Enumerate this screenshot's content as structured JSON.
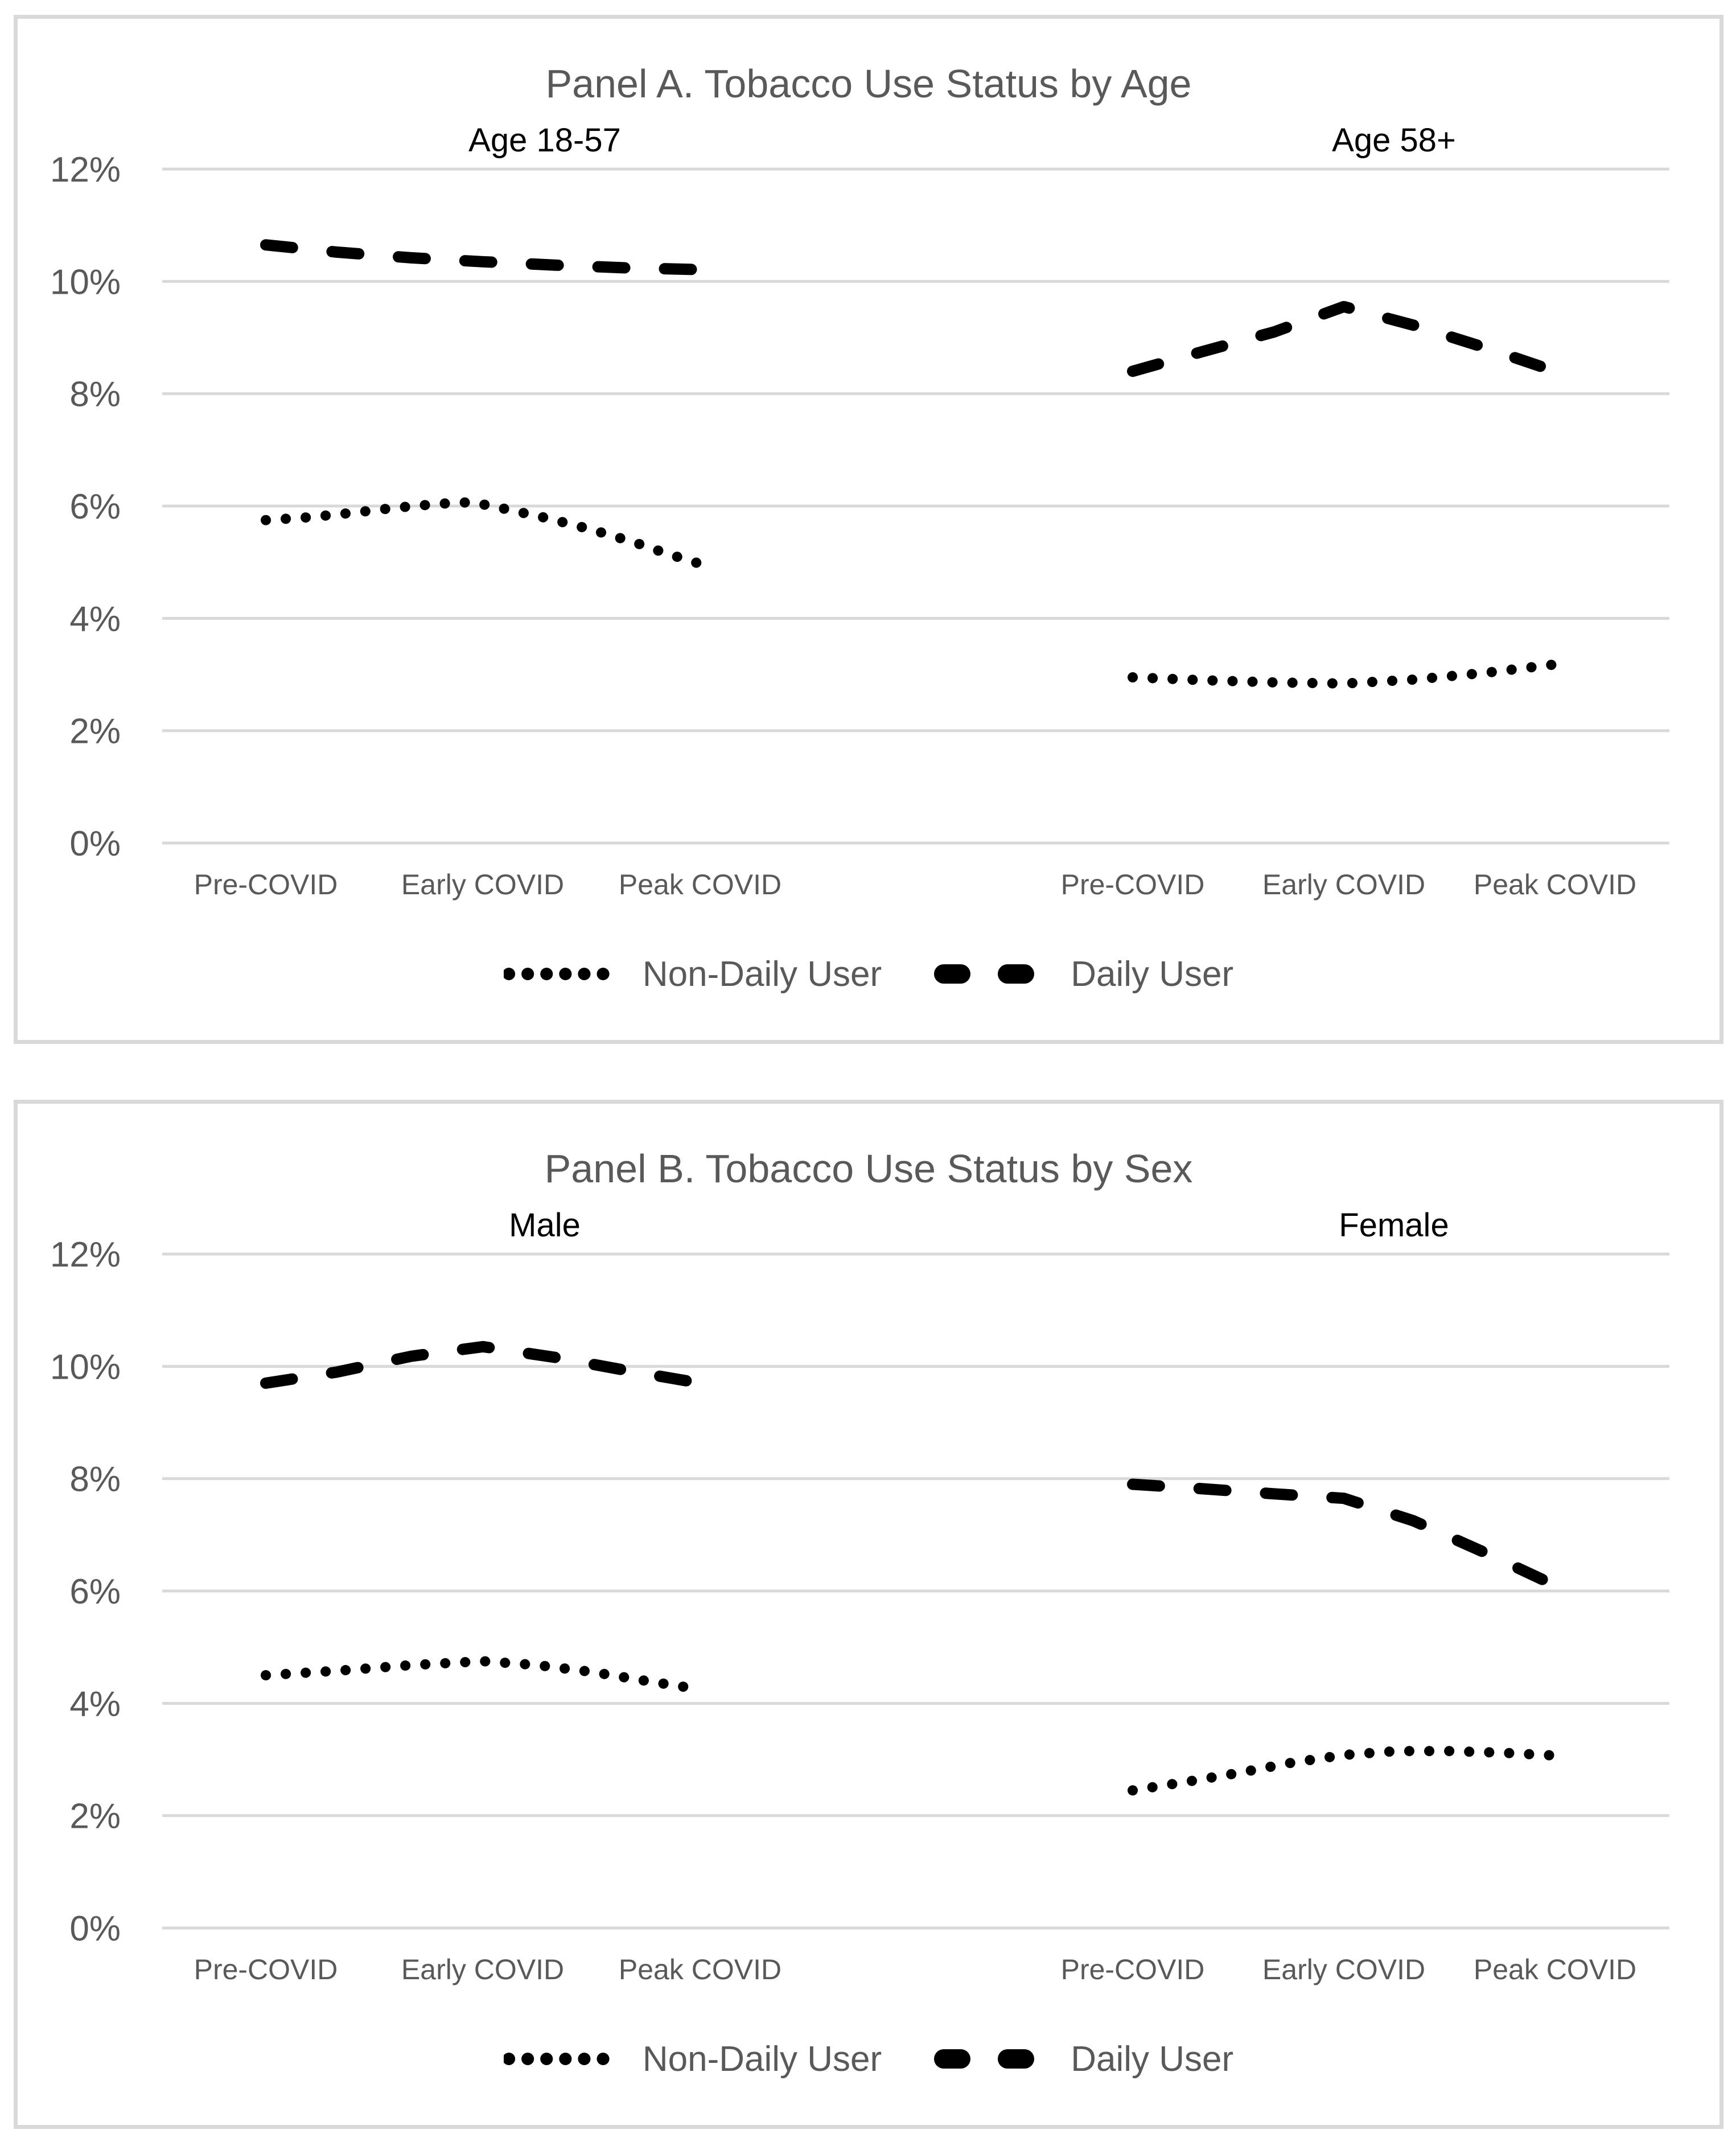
{
  "page": {
    "background": "#FFFFFF"
  },
  "colors": {
    "title_text": "#595959",
    "subtitle_text": "#000000",
    "axis_text": "#595959",
    "legend_text": "#595959",
    "gridline": "#D9D9D9",
    "panel_border": "#D9D9D9",
    "series_line": "#000000"
  },
  "chart_data": [
    {
      "type": "line",
      "title": "Panel A. Tobacco Use Status by Age",
      "categories": [
        "Pre-COVID",
        "Early COVID",
        "Peak COVID"
      ],
      "x_note": "point x runs 0=Pre-COVID, 1=Early COVID, 2=Peak COVID",
      "y_axis": {
        "unit": "%",
        "ylim_percent": [
          0,
          12
        ],
        "tick_labels": [
          "12%",
          "10%",
          "8%",
          "6%",
          "4%",
          "2%",
          "0%"
        ],
        "tick_values_percent": [
          12,
          10,
          8,
          6,
          4,
          2,
          0
        ],
        "grid": true
      },
      "legend": [
        "Non-Daily User",
        "Daily User"
      ],
      "legend_position": "bottom",
      "subplots": [
        {
          "subtitle": "Age 18-57",
          "series": [
            {
              "name": "Non-Daily User",
              "style": "dotted",
              "points": [
                [
                  0,
                  5.75
                ],
                [
                  0.2,
                  5.8
                ],
                [
                  0.4,
                  5.88
                ],
                [
                  0.6,
                  5.97
                ],
                [
                  0.8,
                  6.04
                ],
                [
                  0.95,
                  6.07
                ],
                [
                  1.1,
                  5.95
                ],
                [
                  1.3,
                  5.78
                ],
                [
                  1.5,
                  5.58
                ],
                [
                  1.7,
                  5.35
                ],
                [
                  1.85,
                  5.15
                ],
                [
                  2,
                  4.97
                ]
              ]
            },
            {
              "name": "Daily User",
              "style": "dashed",
              "points": [
                [
                  0,
                  10.65
                ],
                [
                  0.33,
                  10.52
                ],
                [
                  0.67,
                  10.42
                ],
                [
                  1,
                  10.35
                ],
                [
                  1.33,
                  10.29
                ],
                [
                  1.67,
                  10.24
                ],
                [
                  2,
                  10.21
                ]
              ]
            }
          ]
        },
        {
          "subtitle": "Age 58+",
          "series": [
            {
              "name": "Non-Daily User",
              "style": "dotted",
              "points": [
                [
                  0,
                  2.95
                ],
                [
                  0.33,
                  2.9
                ],
                [
                  0.67,
                  2.86
                ],
                [
                  1,
                  2.84
                ],
                [
                  1.33,
                  2.91
                ],
                [
                  1.67,
                  3.03
                ],
                [
                  2,
                  3.18
                ]
              ]
            },
            {
              "name": "Daily User",
              "style": "dashed",
              "points": [
                [
                  0,
                  8.4
                ],
                [
                  0.33,
                  8.75
                ],
                [
                  0.67,
                  9.1
                ],
                [
                  1,
                  9.55
                ],
                [
                  1.33,
                  9.22
                ],
                [
                  1.67,
                  8.82
                ],
                [
                  2,
                  8.4
                ]
              ]
            }
          ]
        }
      ]
    },
    {
      "type": "line",
      "title": "Panel B. Tobacco Use Status by Sex",
      "categories": [
        "Pre-COVID",
        "Early COVID",
        "Peak COVID"
      ],
      "x_note": "point x runs 0=Pre-COVID, 1=Early COVID, 2=Peak COVID",
      "y_axis": {
        "unit": "%",
        "ylim_percent": [
          0,
          12
        ],
        "tick_labels": [
          "12%",
          "10%",
          "8%",
          "6%",
          "4%",
          "2%",
          "0%"
        ],
        "tick_values_percent": [
          12,
          10,
          8,
          6,
          4,
          2,
          0
        ],
        "grid": true
      },
      "legend": [
        "Non-Daily User",
        "Daily User"
      ],
      "legend_position": "bottom",
      "subplots": [
        {
          "subtitle": "Male",
          "series": [
            {
              "name": "Non-Daily User",
              "style": "dotted",
              "points": [
                [
                  0,
                  4.5
                ],
                [
                  0.33,
                  4.58
                ],
                [
                  0.67,
                  4.68
                ],
                [
                  1,
                  4.75
                ],
                [
                  1.25,
                  4.68
                ],
                [
                  1.5,
                  4.56
                ],
                [
                  1.75,
                  4.4
                ],
                [
                  2,
                  4.25
                ]
              ]
            },
            {
              "name": "Daily User",
              "style": "dashed",
              "points": [
                [
                  0,
                  9.7
                ],
                [
                  0.33,
                  9.9
                ],
                [
                  0.67,
                  10.18
                ],
                [
                  1,
                  10.35
                ],
                [
                  1.33,
                  10.16
                ],
                [
                  1.67,
                  9.92
                ],
                [
                  2,
                  9.7
                ]
              ]
            }
          ]
        },
        {
          "subtitle": "Female",
          "series": [
            {
              "name": "Non-Daily User",
              "style": "dotted",
              "points": [
                [
                  0,
                  2.45
                ],
                [
                  0.25,
                  2.6
                ],
                [
                  0.5,
                  2.76
                ],
                [
                  0.75,
                  2.94
                ],
                [
                  1,
                  3.08
                ],
                [
                  1.25,
                  3.15
                ],
                [
                  1.5,
                  3.15
                ],
                [
                  1.75,
                  3.12
                ],
                [
                  2,
                  3.07
                ]
              ]
            },
            {
              "name": "Daily User",
              "style": "dashed",
              "points": [
                [
                  0,
                  7.9
                ],
                [
                  0.33,
                  7.82
                ],
                [
                  0.67,
                  7.73
                ],
                [
                  1,
                  7.65
                ],
                [
                  1.33,
                  7.25
                ],
                [
                  1.67,
                  6.68
                ],
                [
                  2,
                  6.1
                ]
              ]
            }
          ]
        }
      ]
    }
  ]
}
